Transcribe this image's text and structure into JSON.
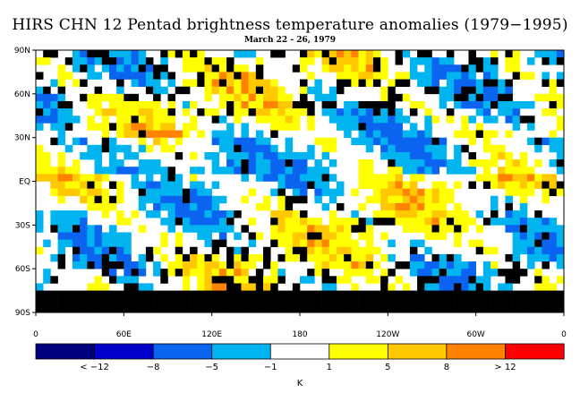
{
  "chart_data": {
    "type": "heatmap",
    "title": "HIRS CHN 12 Pentad brightness temperature anomalies (1979−1995)",
    "subtitle": "March 22 - 26, 1979",
    "xlabel": "",
    "ylabel": "",
    "x_ticks": [
      "0",
      "60E",
      "120E",
      "180",
      "120W",
      "60W",
      "0"
    ],
    "y_ticks": [
      "90N",
      "60N",
      "30N",
      "EQ",
      "30S",
      "60S",
      "90S"
    ],
    "colorbar": {
      "unit_label": "K",
      "tick_labels": [
        "< −12",
        "−8",
        "−5",
        "−1",
        "1",
        "5",
        "8",
        "> 12"
      ],
      "colors": [
        "#00007f",
        "#0000cd",
        "#0a64f0",
        "#00b4f0",
        "#ffffff",
        "#ffff00",
        "#ffc800",
        "#ff8200",
        "#ff0000"
      ]
    },
    "missing_color": "#000000",
    "grid": false
  }
}
